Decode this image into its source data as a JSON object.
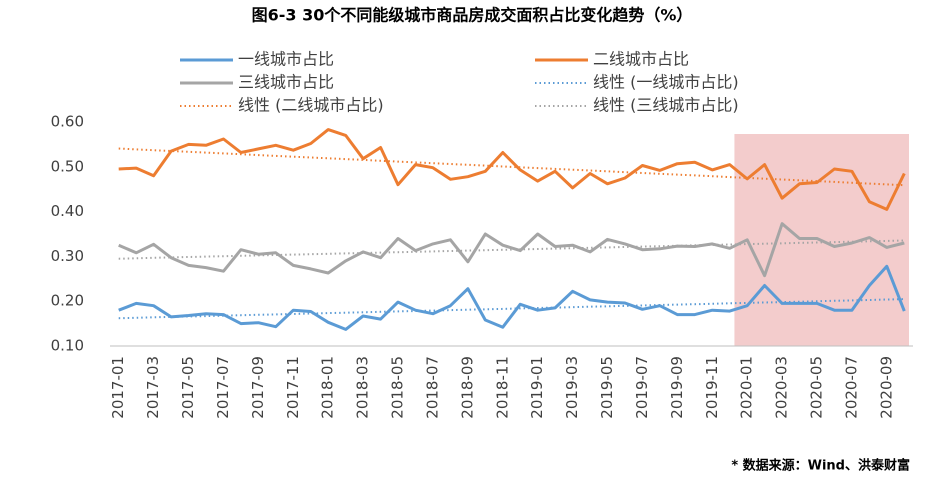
{
  "chart_data": {
    "type": "line",
    "title": "图6-3 30个不同能级城市商品房成交面积占比变化趋势（%）",
    "source": "* 数据来源：Wind、洪泰财富",
    "categories": [
      "2017-01",
      null,
      "2017-03",
      null,
      "2017-05",
      null,
      "2017-07",
      null,
      "2017-09",
      null,
      "2017-11",
      null,
      "2018-01",
      null,
      "2018-03",
      null,
      "2018-05",
      null,
      "2018-07",
      null,
      "2018-09",
      null,
      "2018-11",
      null,
      "2019-01",
      null,
      "2019-03",
      null,
      "2019-05",
      null,
      "2019-07",
      null,
      "2019-09",
      null,
      "2019-11",
      null,
      "2020-01",
      null,
      "2020-03",
      null,
      "2020-05",
      null,
      "2020-07",
      null,
      "2020-09",
      null
    ],
    "highlight_range": [
      36,
      45
    ],
    "highlight_color": "#f3cccc",
    "ylim": [
      0.1,
      0.6
    ],
    "yticks": [
      {
        "value": 0.1,
        "label": "0.10"
      },
      {
        "value": 0.2,
        "label": "0.20"
      },
      {
        "value": 0.3,
        "label": "0.30"
      },
      {
        "value": 0.4,
        "label": "0.40"
      },
      {
        "value": 0.5,
        "label": "0.50"
      },
      {
        "value": 0.6,
        "label": "0.60"
      }
    ],
    "grid": false,
    "series": [
      {
        "name": "一线城市占比",
        "color": "#5b9bd5",
        "trend_name": "线性 (一线城市占比)",
        "values": [
          0.18,
          0.195,
          0.19,
          0.165,
          0.168,
          0.172,
          0.17,
          0.15,
          0.152,
          0.143,
          0.18,
          0.177,
          0.153,
          0.137,
          0.167,
          0.16,
          0.198,
          0.18,
          0.172,
          0.19,
          0.228,
          0.158,
          0.142,
          0.193,
          0.18,
          0.185,
          0.222,
          0.203,
          0.198,
          0.196,
          0.182,
          0.19,
          0.17,
          0.17,
          0.18,
          0.178,
          0.19,
          0.235,
          0.195,
          0.195,
          0.195,
          0.18,
          0.18,
          0.235,
          0.278,
          0.178
        ]
      },
      {
        "name": "二线城市占比",
        "color": "#ed7d31",
        "trend_name": "线性 (二线城市占比)",
        "values": [
          0.495,
          0.497,
          0.48,
          0.535,
          0.55,
          0.548,
          0.562,
          0.532,
          0.54,
          0.548,
          0.537,
          0.552,
          0.583,
          0.57,
          0.518,
          0.543,
          0.46,
          0.505,
          0.498,
          0.472,
          0.478,
          0.49,
          0.532,
          0.493,
          0.468,
          0.49,
          0.453,
          0.485,
          0.462,
          0.475,
          0.503,
          0.492,
          0.507,
          0.51,
          0.493,
          0.505,
          0.473,
          0.505,
          0.43,
          0.462,
          0.465,
          0.495,
          0.49,
          0.422,
          0.405,
          0.485
        ]
      },
      {
        "name": "三线城市占比",
        "color": "#a5a5a5",
        "trend_name": "线性 (三线城市占比)",
        "values": [
          0.325,
          0.308,
          0.327,
          0.297,
          0.28,
          0.275,
          0.267,
          0.315,
          0.305,
          0.308,
          0.28,
          0.272,
          0.263,
          0.29,
          0.31,
          0.297,
          0.34,
          0.313,
          0.328,
          0.337,
          0.288,
          0.35,
          0.325,
          0.313,
          0.35,
          0.322,
          0.325,
          0.31,
          0.338,
          0.328,
          0.315,
          0.317,
          0.323,
          0.322,
          0.328,
          0.318,
          0.337,
          0.257,
          0.373,
          0.34,
          0.34,
          0.322,
          0.33,
          0.342,
          0.32,
          0.33
        ]
      }
    ]
  }
}
